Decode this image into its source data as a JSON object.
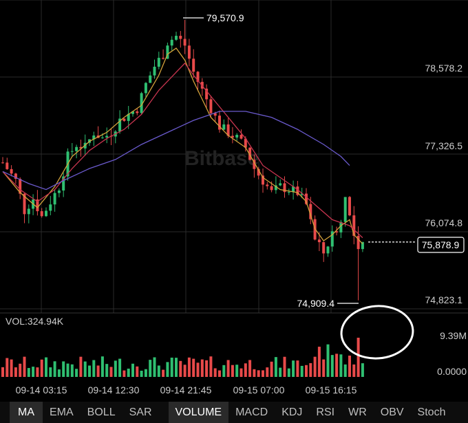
{
  "chart_data": {
    "type": "candlestick",
    "watermark": "Bitbase",
    "y_axis": {
      "range": [
        74700,
        79900
      ],
      "ticks": [
        "78,578.2",
        "77,326.5",
        "76,074.8",
        "74,823.1"
      ],
      "tick_values": [
        78578.2,
        77326.5,
        76074.8,
        74823.1
      ]
    },
    "x_axis": {
      "ticks": [
        "09-14 03:15",
        "09-14 12:30",
        "09-14 21:45",
        "09-15 07:00",
        "09-15 16:15"
      ]
    },
    "annotations": {
      "high_label": "79,570.9",
      "high_value": 79570.9,
      "low_label": "74,909.4",
      "low_value": 74909.4,
      "last_price_label": "75,878.9",
      "last_price_value": 75878.9
    },
    "volume": {
      "label": "VOL:324.94K",
      "axis_ticks": [
        "9.39M",
        "0.0000"
      ],
      "axis_max": 9390000
    },
    "price_path": [
      [
        0,
        77200
      ],
      [
        3,
        76900
      ],
      [
        5,
        76400
      ],
      [
        7,
        76600
      ],
      [
        9,
        76300
      ],
      [
        11,
        76550
      ],
      [
        13,
        76800
      ],
      [
        15,
        77300
      ],
      [
        17,
        77500
      ],
      [
        19,
        77450
      ],
      [
        21,
        77700
      ],
      [
        23,
        77600
      ],
      [
        25,
        77700
      ],
      [
        27,
        77900
      ],
      [
        29,
        78000
      ],
      [
        31,
        78100
      ],
      [
        33,
        78500
      ],
      [
        35,
        78800
      ],
      [
        37,
        79000
      ],
      [
        38,
        79200
      ],
      [
        40,
        79300
      ],
      [
        42,
        79150
      ],
      [
        44,
        78700
      ],
      [
        46,
        78400
      ],
      [
        48,
        78100
      ],
      [
        50,
        77800
      ],
      [
        52,
        77700
      ],
      [
        54,
        77600
      ],
      [
        56,
        77450
      ],
      [
        58,
        77100
      ],
      [
        60,
        76900
      ],
      [
        62,
        76700
      ],
      [
        64,
        76800
      ],
      [
        66,
        76750
      ],
      [
        68,
        76700
      ],
      [
        70,
        76500
      ],
      [
        71,
        76200
      ],
      [
        72,
        75900
      ],
      [
        74,
        75700
      ],
      [
        76,
        76000
      ],
      [
        78,
        76200
      ],
      [
        79,
        76700
      ],
      [
        80,
        76300
      ],
      [
        81,
        75950
      ],
      [
        82,
        75700
      ],
      [
        83,
        75879
      ]
    ],
    "ma_series": [
      {
        "color": "#d4a33b",
        "values": [
          [
            0,
            77050
          ],
          [
            4,
            76700
          ],
          [
            8,
            76450
          ],
          [
            12,
            76800
          ],
          [
            16,
            77300
          ],
          [
            20,
            77550
          ],
          [
            24,
            77700
          ],
          [
            28,
            77950
          ],
          [
            32,
            78150
          ],
          [
            36,
            78650
          ],
          [
            38,
            79000
          ],
          [
            40,
            79100
          ],
          [
            42,
            78900
          ],
          [
            44,
            78550
          ],
          [
            46,
            78250
          ],
          [
            48,
            77950
          ],
          [
            52,
            77650
          ],
          [
            56,
            77450
          ],
          [
            60,
            76950
          ],
          [
            64,
            76750
          ],
          [
            68,
            76700
          ],
          [
            70,
            76550
          ],
          [
            72,
            76100
          ],
          [
            74,
            75900
          ],
          [
            76,
            76000
          ],
          [
            78,
            76150
          ],
          [
            80,
            76250
          ],
          [
            81,
            76000
          ],
          [
            83,
            75850
          ]
        ]
      },
      {
        "color": "#c8354f",
        "values": [
          [
            0,
            77050
          ],
          [
            4,
            76750
          ],
          [
            8,
            76550
          ],
          [
            12,
            76750
          ],
          [
            16,
            77100
          ],
          [
            20,
            77400
          ],
          [
            24,
            77600
          ],
          [
            28,
            77750
          ],
          [
            32,
            78000
          ],
          [
            36,
            78400
          ],
          [
            40,
            78700
          ],
          [
            42,
            78850
          ],
          [
            44,
            78650
          ],
          [
            48,
            78300
          ],
          [
            52,
            77950
          ],
          [
            56,
            77600
          ],
          [
            60,
            77150
          ],
          [
            64,
            76950
          ],
          [
            68,
            76750
          ],
          [
            72,
            76500
          ],
          [
            76,
            76250
          ],
          [
            80,
            76150
          ],
          [
            83,
            75950
          ]
        ]
      },
      {
        "color": "#6a5acd",
        "values": [
          [
            0,
            77050
          ],
          [
            6,
            76850
          ],
          [
            10,
            76750
          ],
          [
            14,
            76900
          ],
          [
            20,
            77100
          ],
          [
            26,
            77250
          ],
          [
            32,
            77500
          ],
          [
            38,
            77700
          ],
          [
            44,
            77900
          ],
          [
            50,
            78050
          ],
          [
            56,
            78050
          ],
          [
            62,
            77950
          ],
          [
            68,
            77750
          ],
          [
            74,
            77500
          ],
          [
            78,
            77300
          ],
          [
            80,
            77150
          ]
        ]
      }
    ]
  },
  "bottom_tabs": [
    "MA",
    "EMA",
    "BOLL",
    "SAR",
    "VOLUME",
    "MACD",
    "KDJ",
    "RSI",
    "WR",
    "OBV",
    "Stoch"
  ],
  "colors": {
    "up": "#2fbf71",
    "down": "#e84a4a",
    "grid": "#2a2a2a",
    "highlight": "#ffffff"
  }
}
